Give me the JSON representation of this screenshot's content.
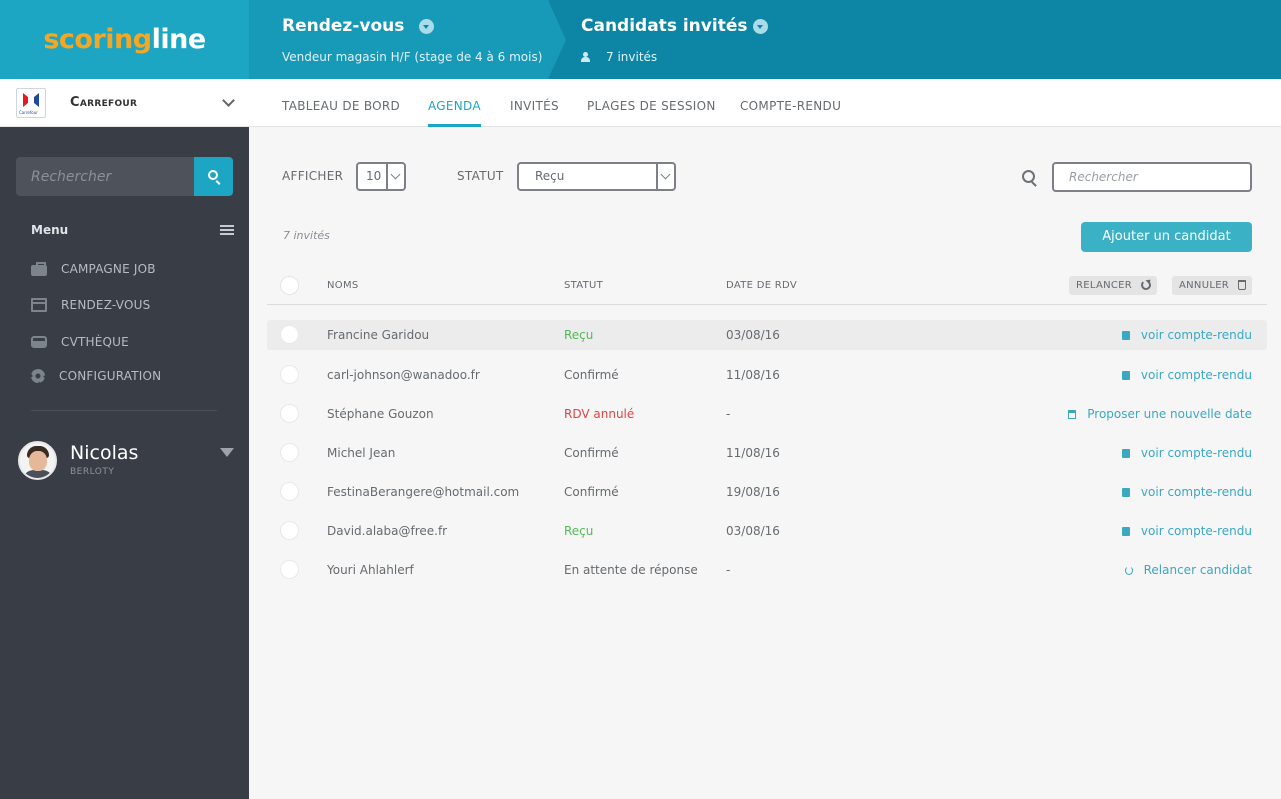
{
  "brand": {
    "part1": "scoring",
    "part2": "line"
  },
  "company": {
    "name": "Carrefour",
    "logo_text": "Carrefour"
  },
  "sidebar": {
    "search_placeholder": "Rechercher",
    "menu_title": "Menu",
    "items": [
      {
        "label": "CAMPAGNE JOB",
        "icon": "briefcase-icon"
      },
      {
        "label": "RENDEZ-VOUS",
        "icon": "calendar-icon"
      },
      {
        "label": "CVTHÈQUE",
        "icon": "inbox-icon"
      },
      {
        "label": "CONFIGURATION",
        "icon": "gear-icon"
      }
    ],
    "user": {
      "name": "Nicolas",
      "subtitle": "BERLOTY"
    }
  },
  "header": {
    "crumb1": {
      "title": "Rendez-vous",
      "subtitle": "Vendeur magasin H/F (stage de 4 à 6 mois)"
    },
    "crumb2": {
      "title": "Candidats invités",
      "subtitle": "7 invités"
    }
  },
  "tabs": [
    {
      "label": "TABLEAU DE BORD"
    },
    {
      "label": "AGENDA",
      "active": true
    },
    {
      "label": "INVITÉS"
    },
    {
      "label": "PLAGES DE SESSION"
    },
    {
      "label": "COMPTE-RENDU"
    }
  ],
  "filters": {
    "afficher_label": "AFFICHER",
    "afficher_value": "10",
    "statut_label": "STATUT",
    "statut_value": "Reçu",
    "search_placeholder": "Rechercher"
  },
  "count_text": "7 invités",
  "add_button": "Ajouter un candidat",
  "table": {
    "columns": {
      "name": "NOMS",
      "status": "STATUT",
      "date": "DATE DE RDV"
    },
    "bulk_actions": {
      "relancer": "RELANCER",
      "annuler": "ANNULER"
    },
    "rows": [
      {
        "name": "Francine Garidou",
        "status": "Reçu",
        "date": "03/08/16",
        "action": "voir compte-rendu"
      },
      {
        "name": "carl-johnson@wanadoo.fr",
        "status": "Confirmé",
        "date": "11/08/16",
        "action": "voir compte-rendu"
      },
      {
        "name": "Stéphane Gouzon",
        "status": "RDV annulé",
        "date": "-",
        "action": "Proposer une nouvelle date"
      },
      {
        "name": "Michel Jean",
        "status": "Confirmé",
        "date": "11/08/16",
        "action": "voir compte-rendu"
      },
      {
        "name": "FestinaBerangere@hotmail.com",
        "status": "Confirmé",
        "date": "19/08/16",
        "action": "voir compte-rendu"
      },
      {
        "name": "David.alaba@free.fr",
        "status": "Reçu",
        "date": "03/08/16",
        "action": "voir compte-rendu"
      },
      {
        "name": "Youri Ahlahlerf",
        "status": "En attente de réponse",
        "date": "-",
        "action": "Relancer candidat"
      }
    ]
  },
  "colors": {
    "accent": "#1da6c4",
    "header_dark": "#0c86a4",
    "sidebar": "#393e46",
    "brand_orange": "#f5a623",
    "status_green": "#55b85a",
    "status_red": "#e24444",
    "link": "#3aa8c1"
  }
}
